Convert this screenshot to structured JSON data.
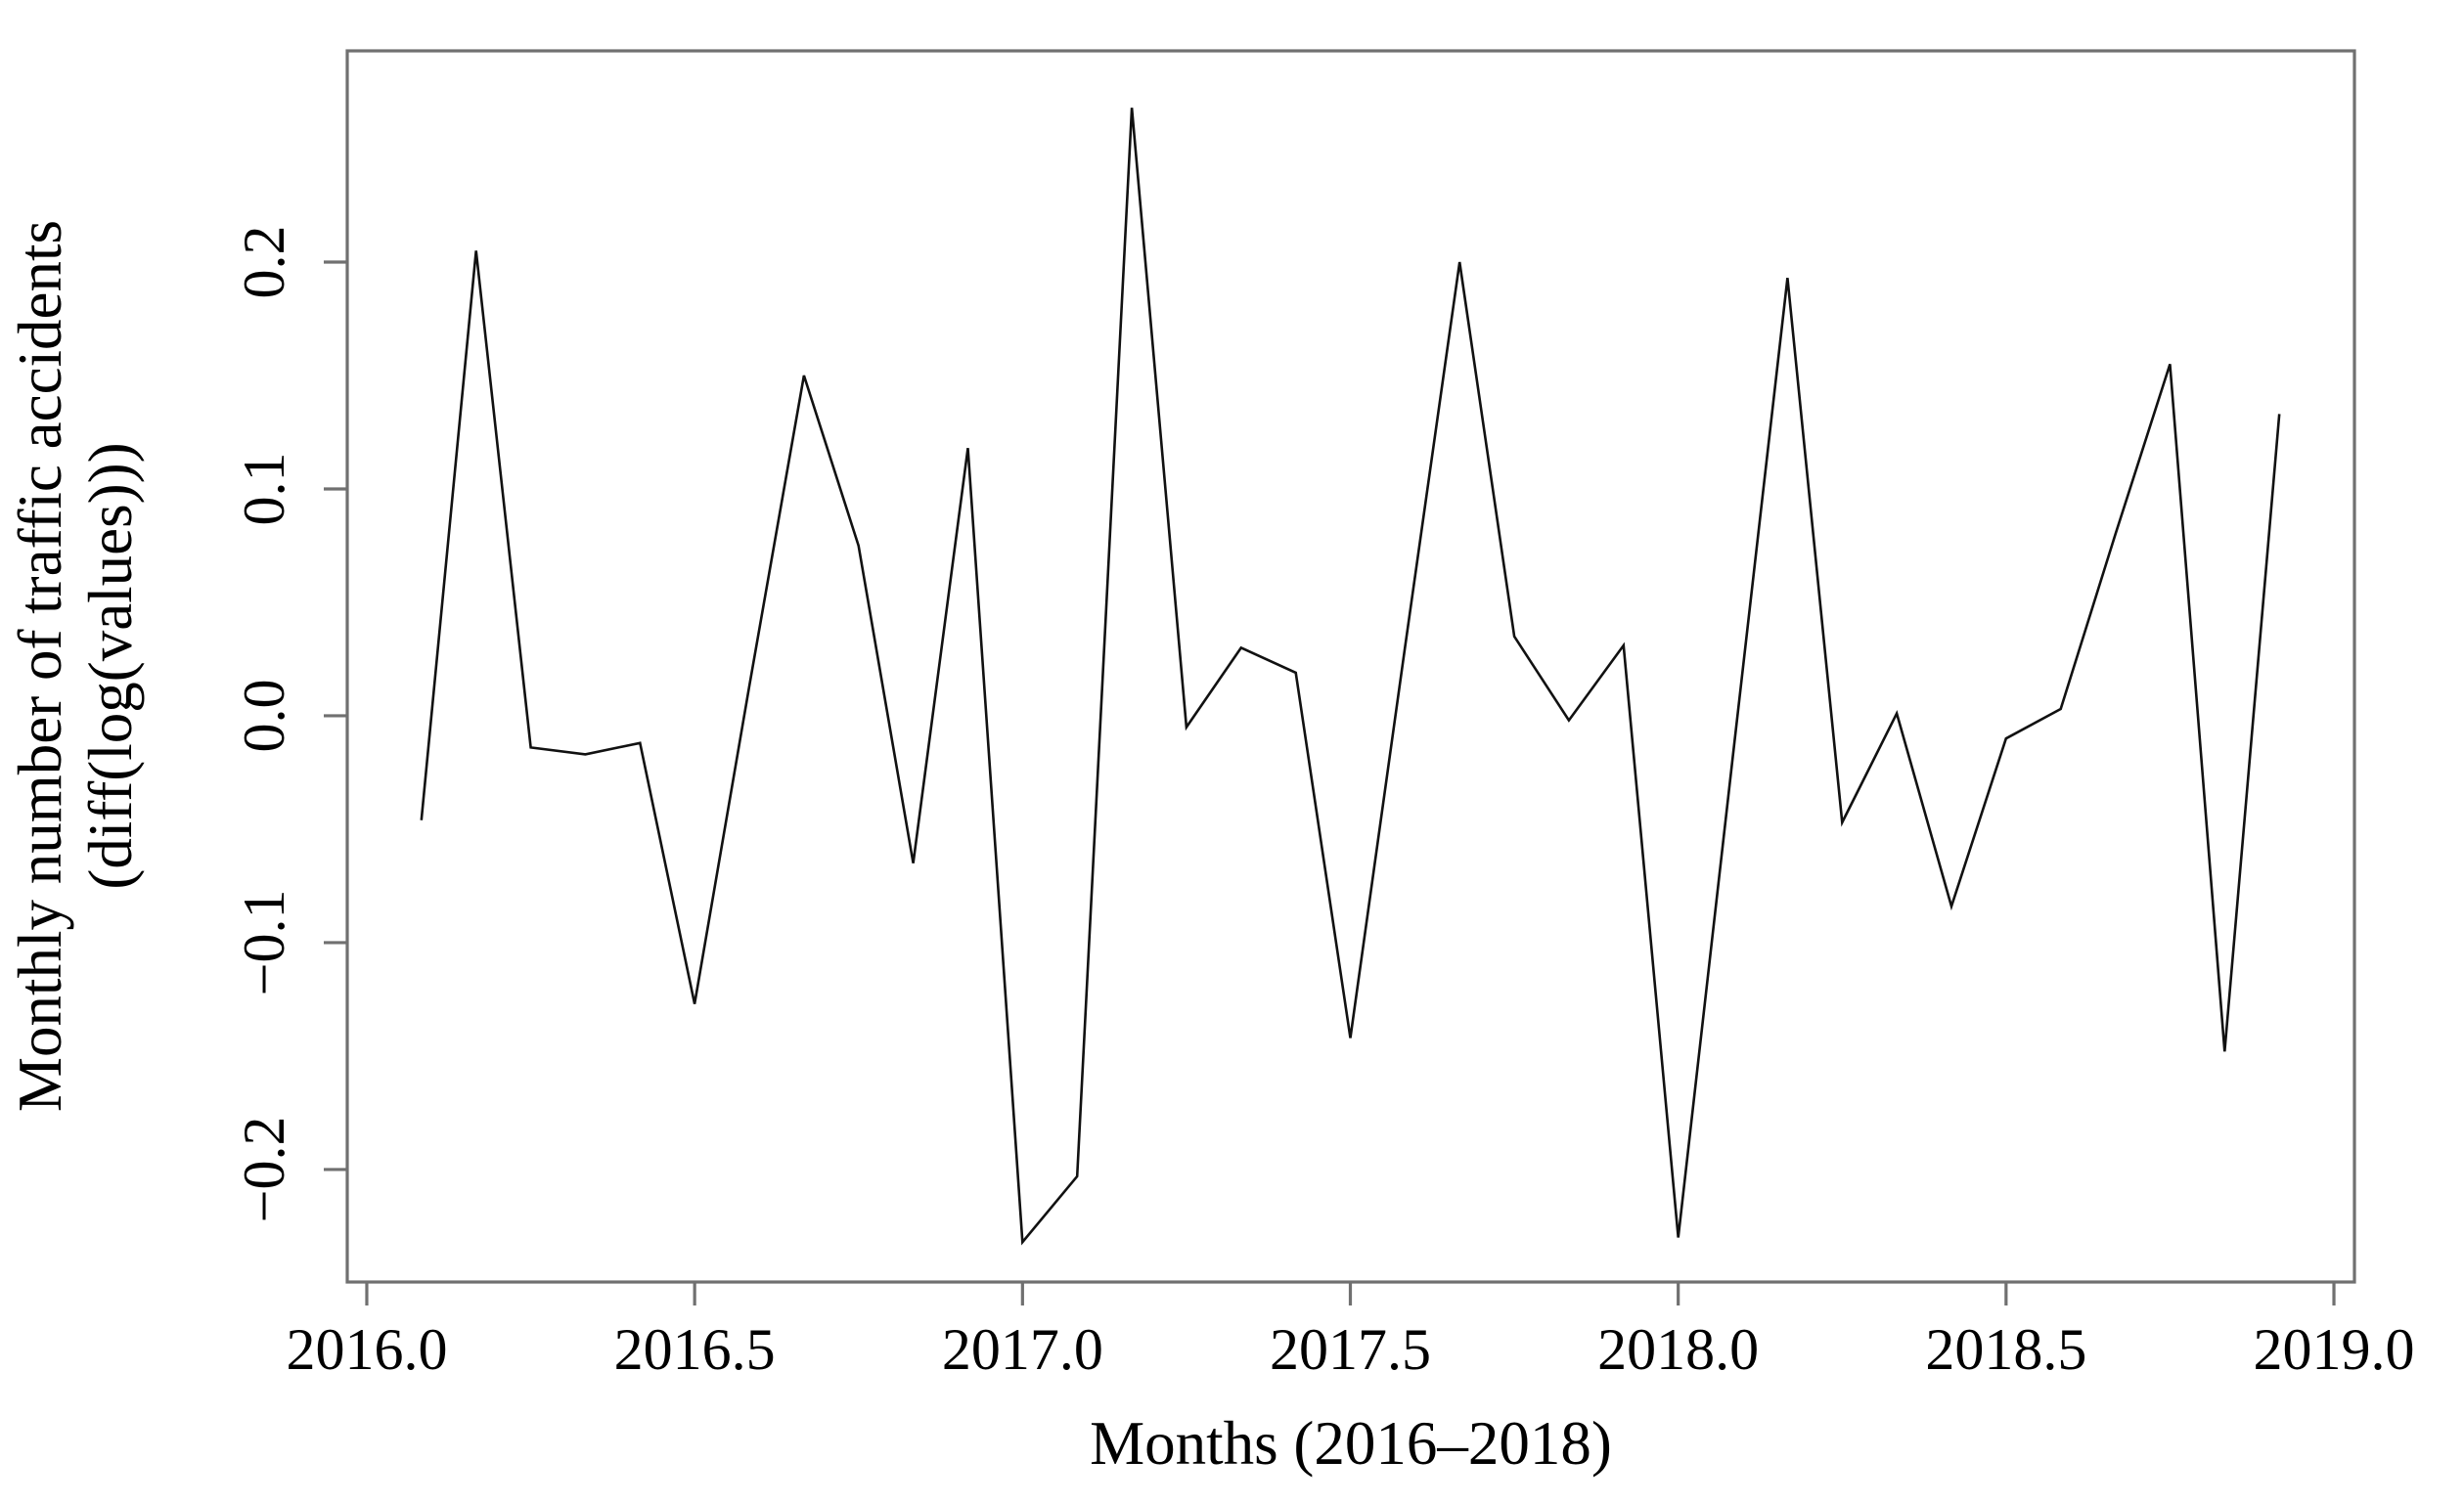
{
  "figure": {
    "xlabel": "Months (2016–2018)",
    "ylabel_line1": "Monthly number of traffic accidents",
    "ylabel_line2": "(diff(log(values)))"
  },
  "chart_data": {
    "type": "line",
    "title": "",
    "xlabel": "Months (2016–2018)",
    "ylabel": "Monthly number of traffic accidents (diff(log(values)))",
    "legend_position": "none",
    "grid": false,
    "line_color": "#111111",
    "axis_color": "#707070",
    "xlim": [
      2015.9702,
      2019.0313
    ],
    "ylim": [
      -0.2496,
      0.2931
    ],
    "x_ticks": [
      2016.0,
      2016.5,
      2017.0,
      2017.5,
      2018.0,
      2018.5,
      2019.0
    ],
    "x_tick_labels": [
      "2016.0",
      "2016.5",
      "2017.0",
      "2017.5",
      "2018.0",
      "2018.5",
      "2019.0"
    ],
    "y_ticks": [
      0.2,
      0.1,
      0.0,
      -0.1,
      -0.2
    ],
    "y_tick_labels": [
      "0.2",
      "0.1",
      "0.0",
      "−0.1",
      "−0.2"
    ],
    "x": [
      2016.0833,
      2016.1667,
      2016.25,
      2016.3333,
      2016.4167,
      2016.5,
      2016.5833,
      2016.6667,
      2016.75,
      2016.8333,
      2016.9167,
      2017.0,
      2017.0833,
      2017.1667,
      2017.25,
      2017.3333,
      2017.4167,
      2017.5,
      2017.5833,
      2017.6667,
      2017.75,
      2017.8333,
      2017.9167,
      2018.0,
      2018.0833,
      2018.1667,
      2018.25,
      2018.3333,
      2018.4167,
      2018.5,
      2018.5833,
      2018.6667,
      2018.75,
      2018.8333,
      2018.9167
    ],
    "values": [
      -0.046,
      0.205,
      -0.014,
      -0.017,
      -0.012,
      -0.127,
      0.013,
      0.15,
      0.075,
      -0.065,
      0.118,
      -0.232,
      -0.203,
      0.268,
      -0.005,
      0.03,
      0.019,
      -0.142,
      0.03,
      0.2,
      0.035,
      -0.002,
      0.031,
      -0.23,
      -0.018,
      0.193,
      -0.047,
      0.001,
      -0.084,
      -0.01,
      0.003,
      0.08,
      0.155,
      -0.148,
      0.133
    ]
  }
}
